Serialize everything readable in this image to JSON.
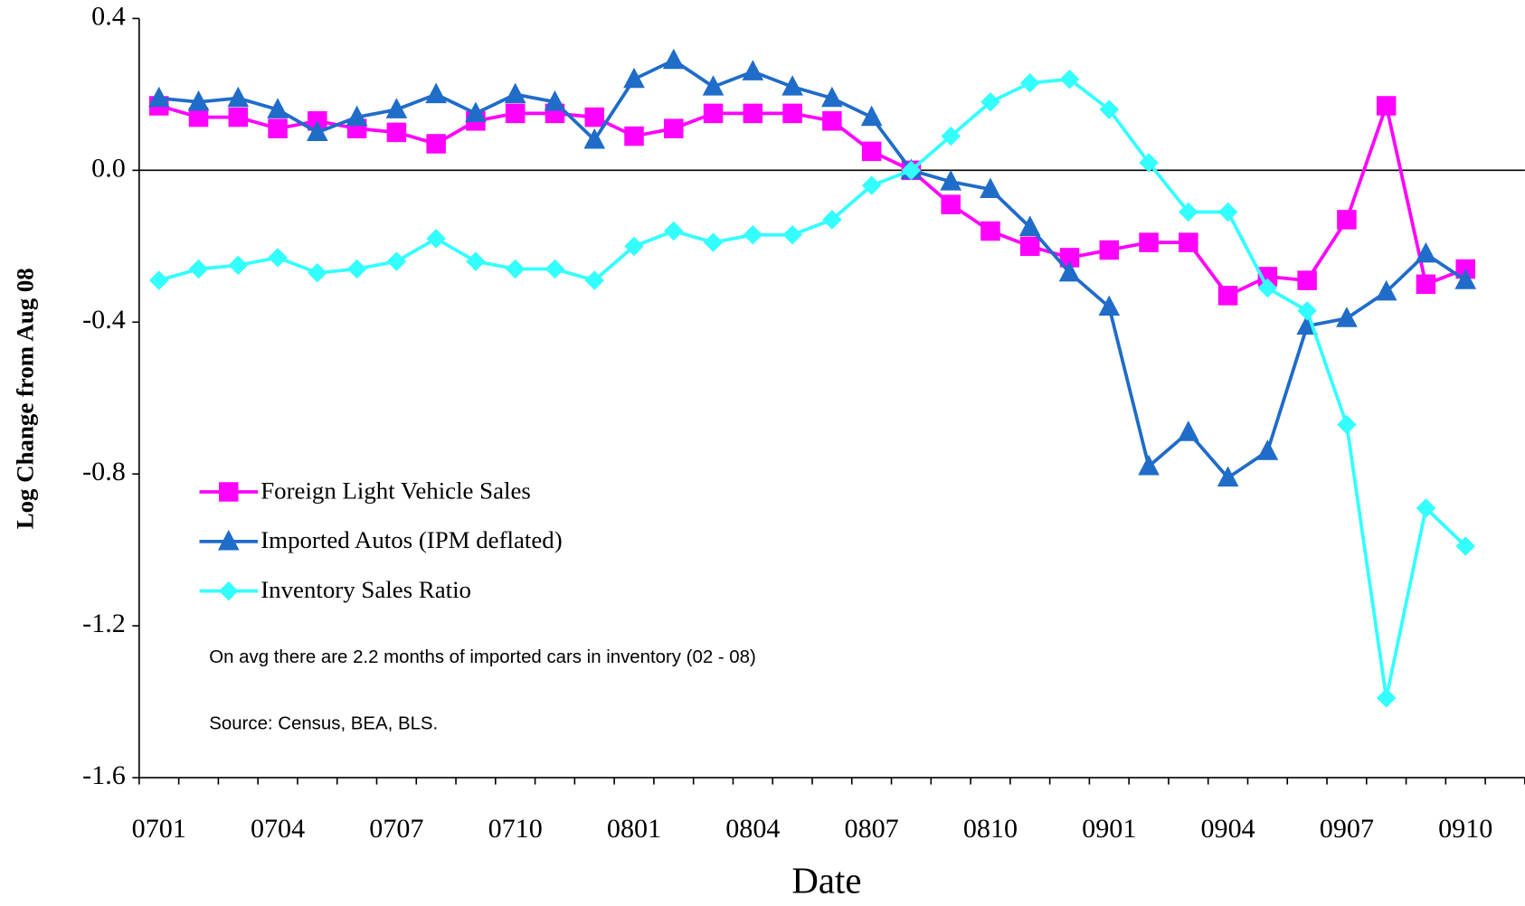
{
  "chart_data": {
    "type": "line",
    "x_label": "Date",
    "y_label": "Log Change from Aug 08",
    "categories": [
      "0701",
      null,
      null,
      "0704",
      null,
      null,
      "0707",
      null,
      null,
      "0710",
      null,
      null,
      "0801",
      null,
      null,
      "0804",
      null,
      null,
      "0807",
      null,
      null,
      "0810",
      null,
      null,
      "0901",
      null,
      null,
      "0904",
      null,
      null,
      "0907",
      null,
      null,
      "0910"
    ],
    "series": [
      {
        "name": "Foreign Light Vehicle Sales",
        "color": "#ff00ff",
        "marker": "square",
        "values": [
          0.17,
          0.14,
          0.14,
          0.11,
          0.13,
          0.11,
          0.1,
          0.07,
          0.13,
          0.15,
          0.15,
          0.14,
          0.09,
          0.11,
          0.15,
          0.15,
          0.15,
          0.13,
          0.05,
          0.0,
          -0.09,
          -0.16,
          -0.2,
          -0.23,
          -0.21,
          -0.19,
          -0.19,
          -0.33,
          -0.28,
          -0.29,
          -0.13,
          0.17,
          -0.3,
          -0.26
        ]
      },
      {
        "name": "Imported Autos (IPM deflated)",
        "color": "#1f6cc9",
        "marker": "triangle",
        "values": [
          0.19,
          0.18,
          0.19,
          0.16,
          0.1,
          0.14,
          0.16,
          0.2,
          0.15,
          0.2,
          0.18,
          0.08,
          0.24,
          0.29,
          0.22,
          0.26,
          0.22,
          0.19,
          0.14,
          0.0,
          -0.03,
          -0.05,
          -0.15,
          -0.27,
          -0.36,
          -0.78,
          -0.69,
          -0.81,
          -0.74,
          -0.41,
          -0.39,
          -0.32,
          -0.22,
          -0.29
        ]
      },
      {
        "name": "Inventory Sales Ratio",
        "color": "#33ffff",
        "marker": "diamond",
        "values": [
          -0.29,
          -0.26,
          -0.25,
          -0.23,
          -0.27,
          -0.26,
          -0.24,
          -0.18,
          -0.24,
          -0.26,
          -0.26,
          -0.29,
          -0.2,
          -0.16,
          -0.19,
          -0.17,
          -0.17,
          -0.13,
          -0.04,
          0.0,
          0.09,
          0.18,
          0.23,
          0.24,
          0.16,
          0.02,
          -0.11,
          -0.11,
          -0.31,
          -0.37,
          -0.67,
          -1.39,
          -0.89,
          -0.99
        ]
      }
    ],
    "ylim": [
      -1.6,
      0.4
    ],
    "yticks": [
      0.4,
      {
        "value": 0,
        "label": "0.0"
      },
      -0.4,
      -0.8,
      -1.2,
      -1.6
    ],
    "annotations": [
      "On avg there are 2.2 months of imported cars in inventory (02 - 08)",
      "Source: Census, BEA, BLS."
    ]
  }
}
